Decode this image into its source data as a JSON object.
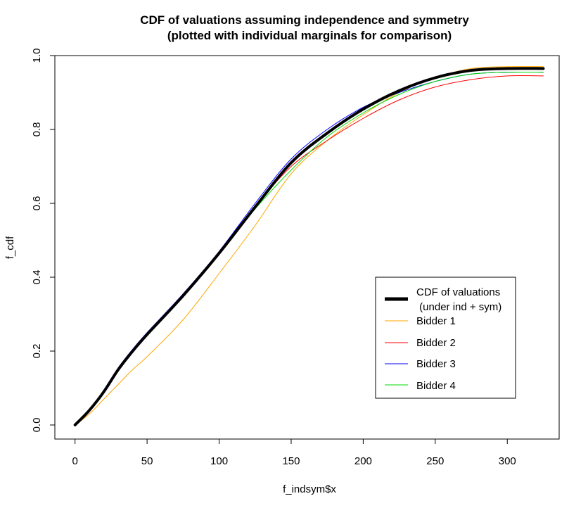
{
  "chart_data": {
    "type": "line",
    "title_line1": "CDF of valuations assuming independence and symmetry",
    "title_line2": "(plotted with individual marginals for comparison)",
    "xlabel": "f_indsym$x",
    "ylabel": "f_cdf",
    "xlim": [
      -14,
      336
    ],
    "ylim": [
      -0.04,
      1.0
    ],
    "x_ticks": [
      "0",
      "50",
      "100",
      "150",
      "200",
      "250",
      "300"
    ],
    "y_ticks": [
      "0.0",
      "0.2",
      "0.4",
      "0.6",
      "0.8",
      "1.0"
    ],
    "legend_position": "bottom-right",
    "legend": [
      {
        "label_line1": "CDF of valuations",
        "label_line2": " (under ind + sym)",
        "color": "#000000",
        "thick": true
      },
      {
        "label_line1": "Bidder 1",
        "color": "#FFA500",
        "thick": false
      },
      {
        "label_line1": "Bidder 2",
        "color": "#FF0000",
        "thick": false
      },
      {
        "label_line1": "Bidder 3",
        "color": "#0000FF",
        "thick": false
      },
      {
        "label_line1": "Bidder 4",
        "color": "#00DD00",
        "thick": false
      }
    ],
    "series": [
      {
        "name": "CDF of valuations (under ind + sym)",
        "color": "#000000",
        "width": 4,
        "x": [
          0,
          10,
          20,
          30,
          40,
          50,
          75,
          100,
          125,
          150,
          175,
          200,
          225,
          250,
          275,
          300,
          325
        ],
        "y": [
          0.0,
          0.04,
          0.09,
          0.15,
          0.2,
          0.245,
          0.35,
          0.465,
          0.59,
          0.71,
          0.79,
          0.855,
          0.905,
          0.94,
          0.96,
          0.965,
          0.965
        ]
      },
      {
        "name": "Bidder 1",
        "color": "#FFA500",
        "width": 1,
        "x": [
          0,
          10,
          20,
          30,
          40,
          50,
          75,
          100,
          125,
          150,
          175,
          200,
          225,
          250,
          275,
          300,
          325
        ],
        "y": [
          0.0,
          0.03,
          0.07,
          0.11,
          0.15,
          0.185,
          0.285,
          0.41,
          0.54,
          0.68,
          0.77,
          0.84,
          0.9,
          0.94,
          0.965,
          0.97,
          0.97
        ]
      },
      {
        "name": "Bidder 2",
        "color": "#FF0000",
        "width": 1,
        "x": [
          0,
          10,
          20,
          30,
          40,
          50,
          75,
          100,
          125,
          150,
          175,
          200,
          225,
          250,
          275,
          300,
          325
        ],
        "y": [
          0.0,
          0.04,
          0.09,
          0.15,
          0.2,
          0.245,
          0.35,
          0.465,
          0.59,
          0.7,
          0.77,
          0.83,
          0.88,
          0.915,
          0.935,
          0.945,
          0.945
        ]
      },
      {
        "name": "Bidder 3",
        "color": "#0000FF",
        "width": 1,
        "x": [
          0,
          10,
          20,
          30,
          40,
          50,
          75,
          100,
          125,
          150,
          175,
          200,
          225,
          250,
          275,
          300,
          325
        ],
        "y": [
          0.0,
          0.04,
          0.095,
          0.155,
          0.205,
          0.25,
          0.355,
          0.47,
          0.6,
          0.72,
          0.8,
          0.86,
          0.9,
          0.93,
          0.95,
          0.955,
          0.955
        ]
      },
      {
        "name": "Bidder 4",
        "color": "#00DD00",
        "width": 1,
        "x": [
          0,
          10,
          20,
          30,
          40,
          50,
          75,
          100,
          125,
          150,
          175,
          200,
          225,
          250,
          275,
          300,
          325
        ],
        "y": [
          0.0,
          0.04,
          0.09,
          0.15,
          0.2,
          0.245,
          0.35,
          0.465,
          0.585,
          0.69,
          0.78,
          0.845,
          0.895,
          0.93,
          0.95,
          0.955,
          0.955
        ]
      }
    ]
  }
}
